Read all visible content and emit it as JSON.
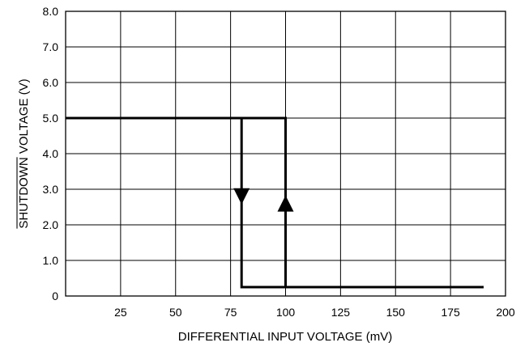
{
  "chart_data": {
    "type": "line",
    "xlabel": "DIFFERENTIAL INPUT VOLTAGE (mV)",
    "ylabel_overbar": "SHUTDOWN",
    "ylabel_rest": " VOLTAGE (V)",
    "xlim": [
      0,
      200
    ],
    "ylim": [
      0,
      8
    ],
    "x_ticks": [
      25,
      50,
      75,
      100,
      125,
      150,
      175,
      200
    ],
    "x_tick_labels": [
      "25",
      "50",
      "75",
      "100",
      "125",
      "150",
      "175",
      "200"
    ],
    "y_ticks": [
      0,
      1,
      2,
      3,
      4,
      5,
      6,
      7,
      8
    ],
    "y_tick_labels": [
      "0",
      "1.0",
      "2.0",
      "3.0",
      "4.0",
      "5.0",
      "6.0",
      "7.0",
      "8.0"
    ],
    "grid": true,
    "series": [
      {
        "direction": "increasing",
        "x": [
          0,
          100,
          100,
          100,
          190
        ],
        "y": [
          5.0,
          5.0,
          0.25,
          0.25,
          0.25
        ],
        "arrow": {
          "x": 100,
          "y": 2.6,
          "direction": "up"
        }
      },
      {
        "direction": "decreasing",
        "x": [
          190,
          80,
          80,
          80,
          0
        ],
        "y": [
          0.25,
          0.25,
          5.0,
          5.0,
          5.0
        ],
        "arrow": {
          "x": 80,
          "y": 2.8,
          "direction": "down"
        }
      }
    ],
    "colors": {
      "line": "#000000",
      "grid": "#000000"
    }
  }
}
